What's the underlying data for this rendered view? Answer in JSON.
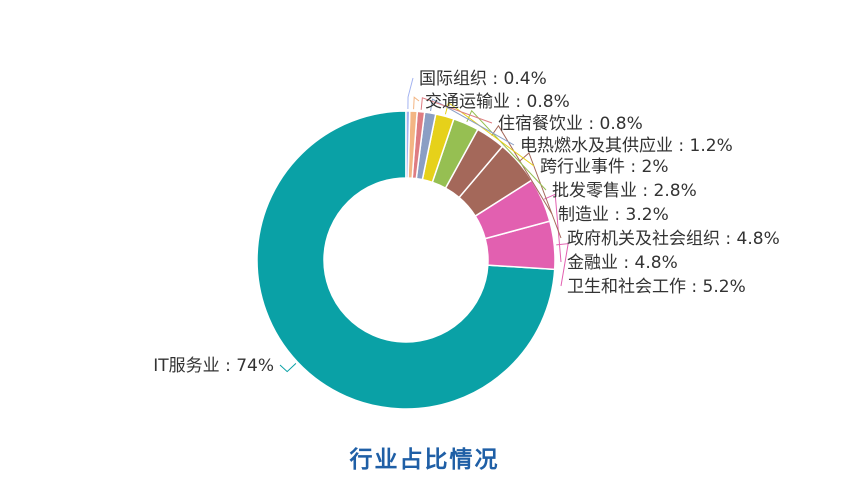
{
  "chart_data": {
    "type": "pie",
    "variant": "donut",
    "title": "行业占比情况",
    "slices": [
      {
        "name": "IT服务业",
        "value": 74,
        "label": "IT服务业 : 74%",
        "color": "#0aa1a6"
      },
      {
        "name": "卫生和社会工作",
        "value": 5.2,
        "label": "卫生和社会工作 : 5.2%",
        "color": "#e260b0"
      },
      {
        "name": "金融业",
        "value": 4.8,
        "label": "金融业 : 4.8%",
        "color": "#e260b0"
      },
      {
        "name": "政府机关及社会组织",
        "value": 4.8,
        "label": "政府机关及社会组织 : 4.8%",
        "color": "#a4685a"
      },
      {
        "name": "制造业",
        "value": 3.2,
        "label": "制造业 : 3.2%",
        "color": "#a4685a"
      },
      {
        "name": "批发零售业",
        "value": 2.8,
        "label": "批发零售业 : 2.8%",
        "color": "#96bf52"
      },
      {
        "name": "跨行业事件",
        "value": 2,
        "label": "跨行业事件 : 2%",
        "color": "#e6d11a"
      },
      {
        "name": "电热燃水及其供应业",
        "value": 1.2,
        "label": "电热燃水及其供应业 : 1.2%",
        "color": "#8a9ec4"
      },
      {
        "name": "住宿餐饮业",
        "value": 0.8,
        "label": "住宿餐饮业 : 0.8%",
        "color": "#de7c82"
      },
      {
        "name": "交通运输业",
        "value": 0.8,
        "label": "交通运输业 : 0.8%",
        "color": "#f3b583"
      },
      {
        "name": "国际组织",
        "value": 0.4,
        "label": "国际组织 : 0.4%",
        "color": "#a3b3f0"
      }
    ]
  }
}
